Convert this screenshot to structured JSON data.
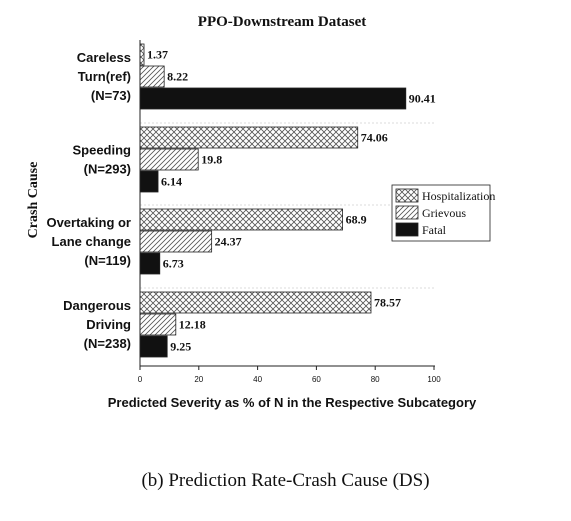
{
  "chart_data": {
    "type": "bar",
    "orientation": "horizontal",
    "title": "PPO-Downstream Dataset",
    "xlabel": "Predicted Severity as % of N in the Respective Subcategory",
    "ylabel": "Crash Cause",
    "xlim": [
      0,
      100
    ],
    "xticks": [
      "0",
      "20",
      "40",
      "60",
      "80",
      "100"
    ],
    "categories": [
      [
        "Careless",
        "Turn(ref)",
        "(N=73)"
      ],
      [
        "Speeding",
        "(N=293)"
      ],
      [
        "Overtaking or",
        "Lane change",
        "(N=119)"
      ],
      [
        "Dangerous",
        "Driving",
        "(N=238)"
      ]
    ],
    "series": [
      {
        "name": "Hospitalization",
        "pattern": "crosshatch",
        "values": [
          1.37,
          74.06,
          68.9,
          78.57
        ],
        "labels": [
          "1.37",
          "74.06",
          "68.9",
          "78.57"
        ]
      },
      {
        "name": "Grievous",
        "pattern": "diagonal",
        "values": [
          8.22,
          19.8,
          24.37,
          12.18
        ],
        "labels": [
          "8.22",
          "19.8",
          "24.37",
          "12.18"
        ]
      },
      {
        "name": "Fatal",
        "pattern": "solid",
        "values": [
          90.41,
          6.14,
          6.73,
          9.25
        ],
        "labels": [
          "90.41",
          "6.14",
          "6.73",
          "9.25"
        ]
      }
    ],
    "legend_position": "right",
    "bar_color": "#111111",
    "grid": false
  },
  "caption": "(b)  Prediction Rate-Crash Cause (DS)"
}
